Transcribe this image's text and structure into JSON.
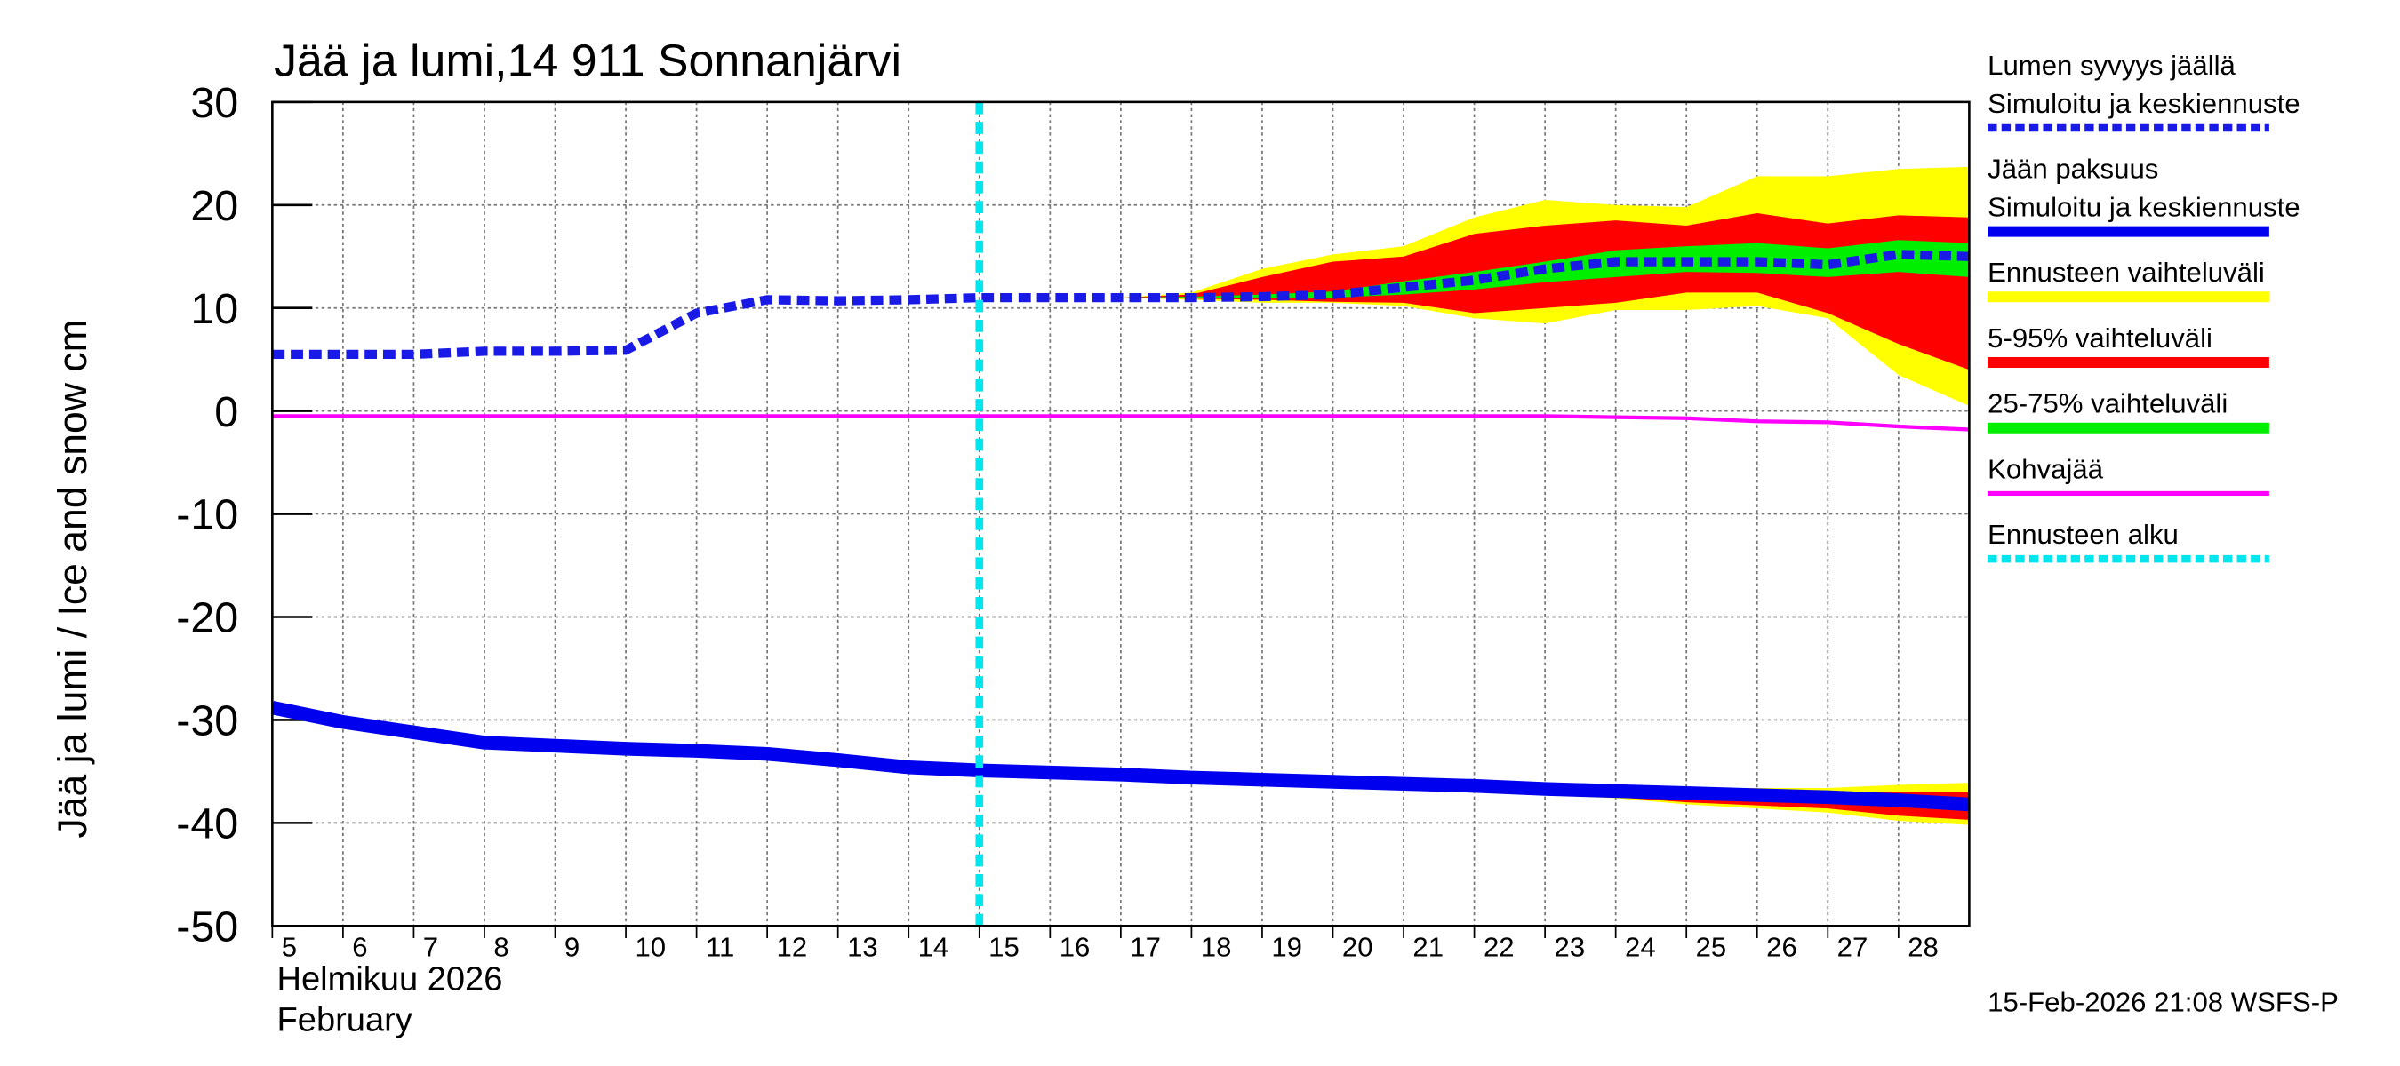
{
  "chart_data": {
    "type": "line",
    "title": "Jää ja lumi,14 911 Sonnanjärvi",
    "y_label": "Jää ja lumi / Ice and snow    cm",
    "month_label": "Helmikuu  2026",
    "month_label_en": "February",
    "footer": "15-Feb-2026 21:08 WSFS-P",
    "x": [
      5,
      6,
      7,
      8,
      9,
      10,
      11,
      12,
      13,
      14,
      15,
      16,
      17,
      18,
      19,
      20,
      21,
      22,
      23,
      24,
      25,
      26,
      27,
      28,
      29
    ],
    "xlim": [
      5,
      29
    ],
    "xticks": [
      5,
      6,
      7,
      8,
      9,
      10,
      11,
      12,
      13,
      14,
      15,
      16,
      17,
      18,
      19,
      20,
      21,
      22,
      23,
      24,
      25,
      26,
      27,
      28
    ],
    "ylim": [
      -50,
      30
    ],
    "yticks": [
      30,
      20,
      10,
      0,
      -10,
      -20,
      -30,
      -40,
      -50
    ],
    "grid": true,
    "forecast_start": 15,
    "forecast_color": "#00e5ee",
    "series": [
      {
        "kind": "band",
        "color": "#ffff00",
        "values_low": [
          null,
          null,
          null,
          null,
          null,
          null,
          null,
          null,
          null,
          null,
          null,
          null,
          11,
          10.8,
          10.5,
          10.5,
          10.2,
          9,
          8.5,
          9.8,
          9.8,
          10.2,
          9,
          3.5,
          0.5
        ],
        "values_high": [
          null,
          null,
          null,
          null,
          null,
          null,
          null,
          null,
          null,
          null,
          null,
          null,
          11,
          11.5,
          13.8,
          15.2,
          16,
          18.8,
          20.5,
          20,
          19.8,
          22.8,
          22.8,
          23.5,
          23.7
        ]
      },
      {
        "kind": "band",
        "color": "#ff0000",
        "values_low": [
          null,
          null,
          null,
          null,
          null,
          null,
          null,
          null,
          null,
          null,
          null,
          null,
          11,
          10.9,
          10.8,
          10.6,
          10.5,
          9.5,
          10,
          10.5,
          11.5,
          11.5,
          9.5,
          6.5,
          4
        ],
        "values_high": [
          null,
          null,
          null,
          null,
          null,
          null,
          null,
          null,
          null,
          null,
          null,
          null,
          11,
          11.3,
          13,
          14.5,
          15,
          17.2,
          18,
          18.5,
          18,
          19.2,
          18.2,
          19,
          18.8
        ]
      },
      {
        "kind": "band",
        "color": "#00ee00",
        "values_low": [
          null,
          null,
          null,
          null,
          null,
          null,
          null,
          null,
          null,
          null,
          null,
          null,
          11,
          11,
          11,
          11,
          11.3,
          11.8,
          12.5,
          13,
          13.5,
          13.4,
          13,
          13.5,
          13
        ],
        "values_high": [
          null,
          null,
          null,
          null,
          null,
          null,
          null,
          null,
          null,
          null,
          null,
          null,
          11,
          11.1,
          11.3,
          11.6,
          12.6,
          13.5,
          14.5,
          15.6,
          16,
          16.3,
          15.8,
          16.6,
          16.3
        ]
      },
      {
        "kind": "band",
        "color": "#ffff00",
        "values_low": [
          null,
          null,
          null,
          null,
          null,
          null,
          null,
          null,
          null,
          null,
          null,
          null,
          null,
          null,
          null,
          null,
          null,
          -36.4,
          -37.3,
          -37.6,
          -38.2,
          -38.6,
          -39,
          -39.8,
          -40.2
        ],
        "values_high": [
          null,
          null,
          null,
          null,
          null,
          null,
          null,
          null,
          null,
          null,
          null,
          null,
          null,
          null,
          null,
          null,
          null,
          -36.3,
          -36.5,
          -36.6,
          -36.6,
          -36.6,
          -36.6,
          -36.3,
          -36.1
        ]
      },
      {
        "kind": "band",
        "color": "#ff0000",
        "values_low": [
          null,
          null,
          null,
          null,
          null,
          null,
          null,
          null,
          null,
          null,
          null,
          null,
          null,
          null,
          null,
          null,
          null,
          null,
          -37.2,
          -37.5,
          -38,
          -38.3,
          -38.6,
          -39.3,
          -39.7
        ],
        "values_high": [
          null,
          null,
          null,
          null,
          null,
          null,
          null,
          null,
          null,
          null,
          null,
          null,
          null,
          null,
          null,
          null,
          null,
          null,
          -36.6,
          -36.8,
          -37,
          -37,
          -37.1,
          -37,
          -37
        ]
      },
      {
        "kind": "line",
        "color": "#ff00ff",
        "width": 2.5,
        "dashed": false,
        "values": [
          -0.5,
          -0.5,
          -0.5,
          -0.5,
          -0.5,
          -0.5,
          -0.5,
          -0.5,
          -0.5,
          -0.5,
          -0.5,
          -0.5,
          -0.5,
          -0.5,
          -0.5,
          -0.5,
          -0.5,
          -0.5,
          -0.5,
          -0.6,
          -0.7,
          -1,
          -1.1,
          -1.5,
          -1.8
        ]
      },
      {
        "kind": "line",
        "color": "#0000ee",
        "width": 9,
        "dashed": false,
        "values": [
          -28.8,
          -30.2,
          -31.2,
          -32.2,
          -32.5,
          -32.8,
          -33,
          -33.3,
          -33.9,
          -34.6,
          -34.9,
          -35.1,
          -35.3,
          -35.6,
          -35.8,
          -36,
          -36.2,
          -36.4,
          -36.7,
          -36.9,
          -37.1,
          -37.3,
          -37.5,
          -37.8,
          -38.2
        ]
      },
      {
        "kind": "line",
        "color": "#1a1ae6",
        "width": 6,
        "dashed": true,
        "values": [
          5.5,
          5.5,
          5.5,
          5.8,
          5.8,
          5.9,
          9.5,
          10.8,
          10.7,
          10.8,
          11,
          11,
          11,
          11,
          11.1,
          11.3,
          12,
          12.7,
          13.8,
          14.5,
          14.5,
          14.5,
          14.2,
          15.2,
          15
        ]
      }
    ],
    "legend": [
      {
        "lines": [
          "Lumen syvyys jäällä",
          "Simuloitu ja keskiennuste"
        ],
        "color": "#1a1ae6",
        "dashed": true
      },
      {
        "lines": [
          "Jään paksuus",
          "Simuloitu ja keskiennuste"
        ],
        "color": "#0000ee",
        "dashed": false
      },
      {
        "lines": [
          "Ennusteen vaihteluväli"
        ],
        "color": "#ffff00",
        "dashed": false
      },
      {
        "lines": [
          "5-95% vaihteluväli"
        ],
        "color": "#ff0000",
        "dashed": false
      },
      {
        "lines": [
          "25-75% vaihteluväli"
        ],
        "color": "#00ee00",
        "dashed": false
      },
      {
        "lines": [
          "Kohvajää"
        ],
        "color": "#ff00ff",
        "dashed": false
      },
      {
        "lines": [
          "Ennusteen alku"
        ],
        "color": "#00e5ee",
        "dashed": true
      }
    ]
  }
}
